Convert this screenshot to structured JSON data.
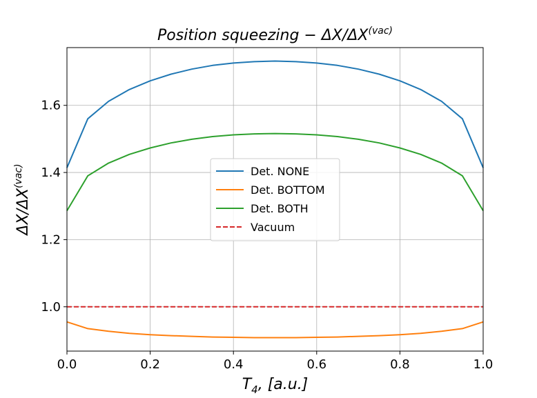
{
  "chart_data": {
    "type": "line",
    "title": "Position squeezing − ΔX/ΔX(vac)",
    "xlabel": "T4, [a.u.]",
    "ylabel": "ΔX/ΔX(vac)",
    "xlim": [
      0.0,
      1.0
    ],
    "ylim": [
      0.868,
      1.772
    ],
    "xticks": [
      0.0,
      0.2,
      0.4,
      0.6,
      0.8,
      1.0
    ],
    "xtick_labels": [
      "0.0",
      "0.2",
      "0.4",
      "0.6",
      "0.8",
      "1.0"
    ],
    "yticks": [
      1.0,
      1.2,
      1.4,
      1.6
    ],
    "ytick_labels": [
      "1.0",
      "1.2",
      "1.4",
      "1.6"
    ],
    "grid": true,
    "legend_position": "center",
    "x": [
      0.0,
      0.05,
      0.1,
      0.15,
      0.2,
      0.25,
      0.3,
      0.35,
      0.4,
      0.45,
      0.5,
      0.55,
      0.6,
      0.65,
      0.7,
      0.75,
      0.8,
      0.85,
      0.9,
      0.95,
      1.0
    ],
    "series": [
      {
        "name": "Det. NONE",
        "color": "#1f77b4",
        "style": "solid",
        "values": [
          1.414,
          1.56,
          1.612,
          1.647,
          1.673,
          1.693,
          1.708,
          1.719,
          1.726,
          1.73,
          1.732,
          1.73,
          1.726,
          1.719,
          1.708,
          1.693,
          1.673,
          1.647,
          1.612,
          1.56,
          1.414
        ]
      },
      {
        "name": "Det. BOTTOM",
        "color": "#ff7f0e",
        "style": "solid",
        "values": [
          0.955,
          0.935,
          0.927,
          0.921,
          0.917,
          0.914,
          0.912,
          0.91,
          0.909,
          0.908,
          0.908,
          0.908,
          0.909,
          0.91,
          0.912,
          0.914,
          0.917,
          0.921,
          0.927,
          0.935,
          0.955
        ]
      },
      {
        "name": "Det. BOTH",
        "color": "#2ca02c",
        "style": "solid",
        "values": [
          1.286,
          1.39,
          1.428,
          1.454,
          1.473,
          1.488,
          1.499,
          1.507,
          1.512,
          1.515,
          1.516,
          1.515,
          1.512,
          1.507,
          1.499,
          1.488,
          1.473,
          1.454,
          1.428,
          1.39,
          1.286
        ]
      },
      {
        "name": "Vacuum",
        "color": "#d62728",
        "style": "dashed",
        "values": [
          1.0,
          1.0,
          1.0,
          1.0,
          1.0,
          1.0,
          1.0,
          1.0,
          1.0,
          1.0,
          1.0,
          1.0,
          1.0,
          1.0,
          1.0,
          1.0,
          1.0,
          1.0,
          1.0,
          1.0,
          1.0
        ]
      }
    ]
  }
}
